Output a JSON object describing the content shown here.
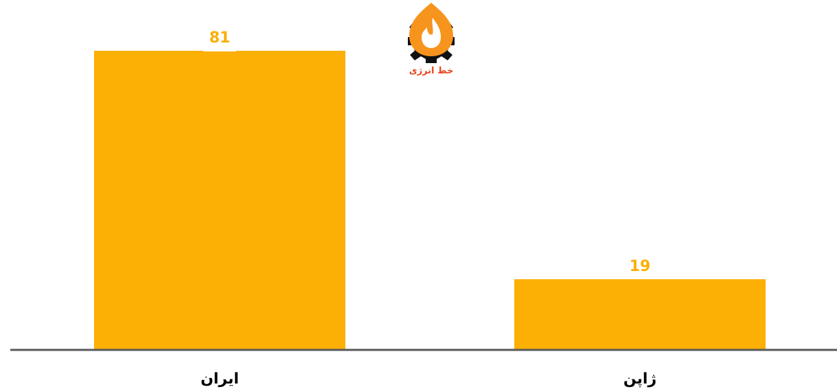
{
  "logo": {
    "text": "خط انرژی"
  },
  "colors": {
    "bar": "#FCAF04",
    "axis": "#595959",
    "logo_flame": "#F7941D",
    "logo_flame_dark": "#E8431B",
    "logo_gear": "#111111"
  },
  "chart_data": {
    "type": "bar",
    "categories": [
      "ایران",
      "ژاپن"
    ],
    "values": [
      81,
      19
    ],
    "ylim": [
      0,
      81
    ],
    "grid": false,
    "legend": "none"
  }
}
